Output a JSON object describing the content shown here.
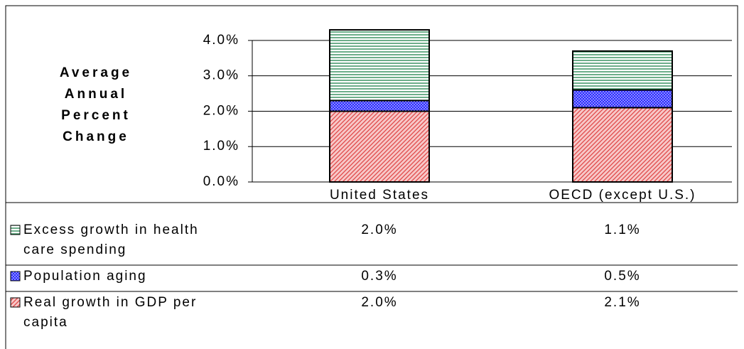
{
  "chart_data": {
    "type": "stacked-bar",
    "y_label": "Average Annual Percent Change",
    "categories": [
      "United States",
      "OECD (except U.S.)"
    ],
    "series": [
      {
        "name": "Real growth in GDP per capita",
        "color": "#e04848",
        "values": [
          2.0,
          2.1
        ],
        "value_labels": [
          "2.0%",
          "2.1%"
        ]
      },
      {
        "name": "Population aging",
        "color": "#2b2bff",
        "values": [
          0.3,
          0.5
        ],
        "value_labels": [
          "0.3%",
          "0.5%"
        ]
      },
      {
        "name": "Excess growth in health care spending",
        "color": "#2e8b57",
        "values": [
          2.0,
          1.1
        ],
        "value_labels": [
          "2.0%",
          "1.1%"
        ]
      }
    ],
    "ylim": [
      0,
      4.5
    ],
    "yticks": [
      {
        "value": 0,
        "label": "0.0%"
      },
      {
        "value": 1,
        "label": "1.0%"
      },
      {
        "value": 2,
        "label": "2.0%"
      },
      {
        "value": 3,
        "label": "3.0%"
      },
      {
        "value": 4,
        "label": "4.0%"
      }
    ],
    "grid": true
  }
}
